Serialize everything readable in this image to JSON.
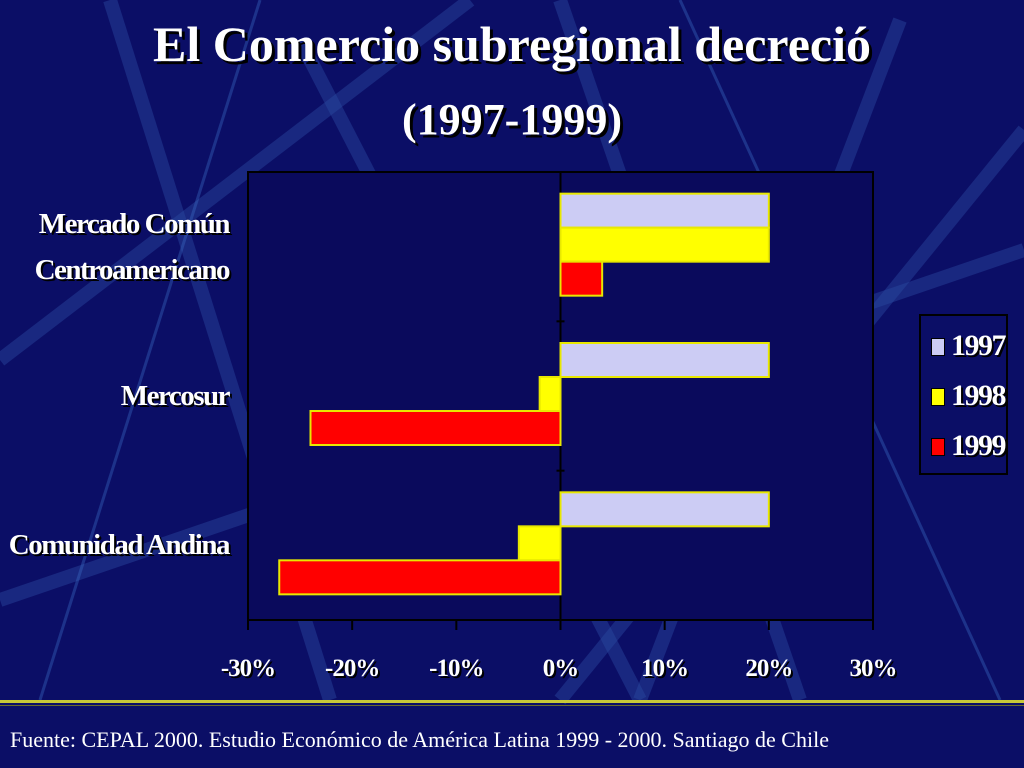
{
  "slide": {
    "title": "El Comercio subregional decreció",
    "subtitle": "(1997-1999)",
    "source": "Fuente: CEPAL 2000. Estudio Económico  de América Latina 1999 - 2000. Santiago de Chile"
  },
  "colors": {
    "background": "#0b0e66",
    "plot_background": "#0a0a5c",
    "bar_outline": "#e8e800",
    "series_1997": "#ccccf4",
    "series_1998": "#ffff00",
    "series_1999": "#ff0000"
  },
  "chart_data": {
    "type": "bar",
    "orientation": "horizontal",
    "categories": [
      "Mercado Común\nCentroamericano",
      "Mercosur",
      "Comunidad Andina"
    ],
    "category_lines": [
      [
        "Mercado Común",
        "Centroamericano"
      ],
      [
        "Mercosur"
      ],
      [
        "Comunidad Andina"
      ]
    ],
    "series": [
      {
        "name": "1997",
        "values": [
          20,
          20,
          20
        ]
      },
      {
        "name": "1998",
        "values": [
          20,
          -2,
          -4
        ]
      },
      {
        "name": "1999",
        "values": [
          4,
          -24,
          -27
        ]
      }
    ],
    "xlim": [
      -30,
      30
    ],
    "x_ticks": [
      "-30%",
      "-20%",
      "-10%",
      "0%",
      "10%",
      "20%",
      "30%"
    ],
    "x_tick_values": [
      -30,
      -20,
      -10,
      0,
      10,
      20,
      30
    ],
    "legend_position": "right",
    "grid": false
  }
}
